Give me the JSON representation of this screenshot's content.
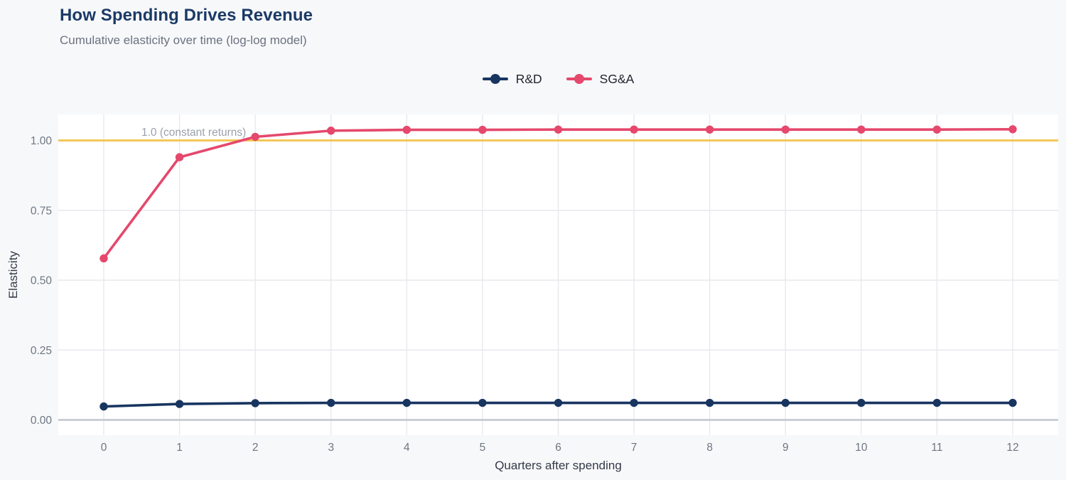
{
  "header": {
    "title": "How Spending Drives Revenue",
    "subtitle": "Cumulative elasticity over time (log-log model)"
  },
  "chart_data": {
    "type": "line",
    "title": "How Spending Drives Revenue",
    "subtitle": "Cumulative elasticity over time (log-log model)",
    "xlabel": "Quarters after spending",
    "ylabel": "Elasticity",
    "x": [
      0,
      1,
      2,
      3,
      4,
      5,
      6,
      7,
      8,
      9,
      10,
      11,
      12
    ],
    "x_tick_labels": [
      "0",
      "1",
      "2",
      "3",
      "4",
      "5",
      "6",
      "7",
      "8",
      "9",
      "10",
      "11",
      "12"
    ],
    "series": [
      {
        "name": "R&D",
        "color": "#183560",
        "values": [
          0.048,
          0.057,
          0.06,
          0.061,
          0.061,
          0.061,
          0.061,
          0.061,
          0.061,
          0.061,
          0.061,
          0.061,
          0.061
        ]
      },
      {
        "name": "SG&A",
        "color": "#e5486c",
        "values": [
          0.578,
          0.94,
          1.013,
          1.035,
          1.038,
          1.038,
          1.039,
          1.039,
          1.039,
          1.039,
          1.039,
          1.039,
          1.04
        ]
      }
    ],
    "y_ticks": [
      {
        "value": 0.0,
        "label": "0.00"
      },
      {
        "value": 0.25,
        "label": "0.25"
      },
      {
        "value": 0.5,
        "label": "0.50"
      },
      {
        "value": 0.75,
        "label": "0.75"
      },
      {
        "value": 1.0,
        "label": "1.00"
      }
    ],
    "ylim": [
      -0.038,
      1.093
    ],
    "xlim": [
      -0.6,
      12.6
    ],
    "grid": true,
    "legend_position": "top-center",
    "reference_line": {
      "value": 1.0,
      "label": "1.0 (constant returns)",
      "color": "#f3c34b",
      "label_color": "#9aa1ab"
    },
    "style": {
      "page_background": "#f7f8fa",
      "plot_background": "#ffffff",
      "gridline_color": "#e7e9ee",
      "zero_axis_color": "#c6cad2",
      "tick_label_color": "#6e7681",
      "axis_title_color": "#323a47",
      "title_color": "#1b3a66",
      "subtitle_color": "#6b7280"
    }
  }
}
